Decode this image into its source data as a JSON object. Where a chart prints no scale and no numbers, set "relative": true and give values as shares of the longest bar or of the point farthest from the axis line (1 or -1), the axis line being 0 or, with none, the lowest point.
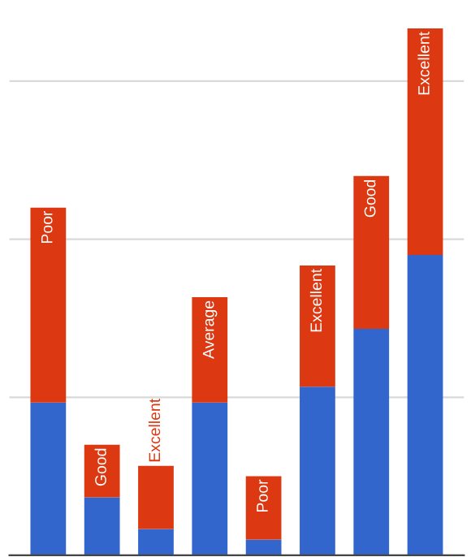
{
  "chart_data": {
    "type": "bar",
    "stacked": true,
    "relative": true,
    "grid": "y",
    "categories": [
      null,
      null,
      null,
      null,
      null,
      null,
      null,
      null
    ],
    "series": [
      {
        "color": "#3366cc",
        "values": [
          0.29,
          0.11,
          0.05,
          0.29,
          0.03,
          0.32,
          0.43,
          0.57
        ]
      },
      {
        "color": "#dc3912",
        "values": [
          0.37,
          0.1,
          0.12,
          0.2,
          0.12,
          0.23,
          0.29,
          0.43
        ]
      }
    ],
    "annotations": [
      "Poor",
      "Good",
      "Excellent",
      "Average",
      "Poor",
      "Excellent",
      "Good",
      "Excellent"
    ]
  }
}
